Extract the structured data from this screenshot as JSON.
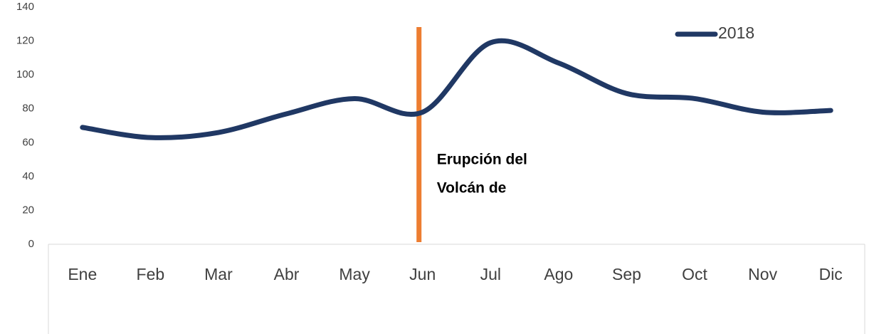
{
  "chart_data": {
    "type": "line",
    "categories": [
      "Ene",
      "Feb",
      "Mar",
      "Abr",
      "May",
      "Jun",
      "Jul",
      "Ago",
      "Sep",
      "Oct",
      "Nov",
      "Dic"
    ],
    "series": [
      {
        "name": "2018",
        "color": "#203864",
        "values": [
          69,
          63,
          66,
          77,
          86,
          78,
          119,
          107,
          89,
          86,
          78,
          79
        ]
      }
    ],
    "ylim": [
      0,
      140
    ],
    "yticks": [
      0,
      20,
      40,
      60,
      80,
      100,
      120,
      140
    ],
    "smooth": true,
    "legend": "top-right",
    "annotation": {
      "lines": [
        "Erupción del",
        "Volcán de"
      ],
      "category": "Jun",
      "color": "#ED7D31"
    }
  }
}
